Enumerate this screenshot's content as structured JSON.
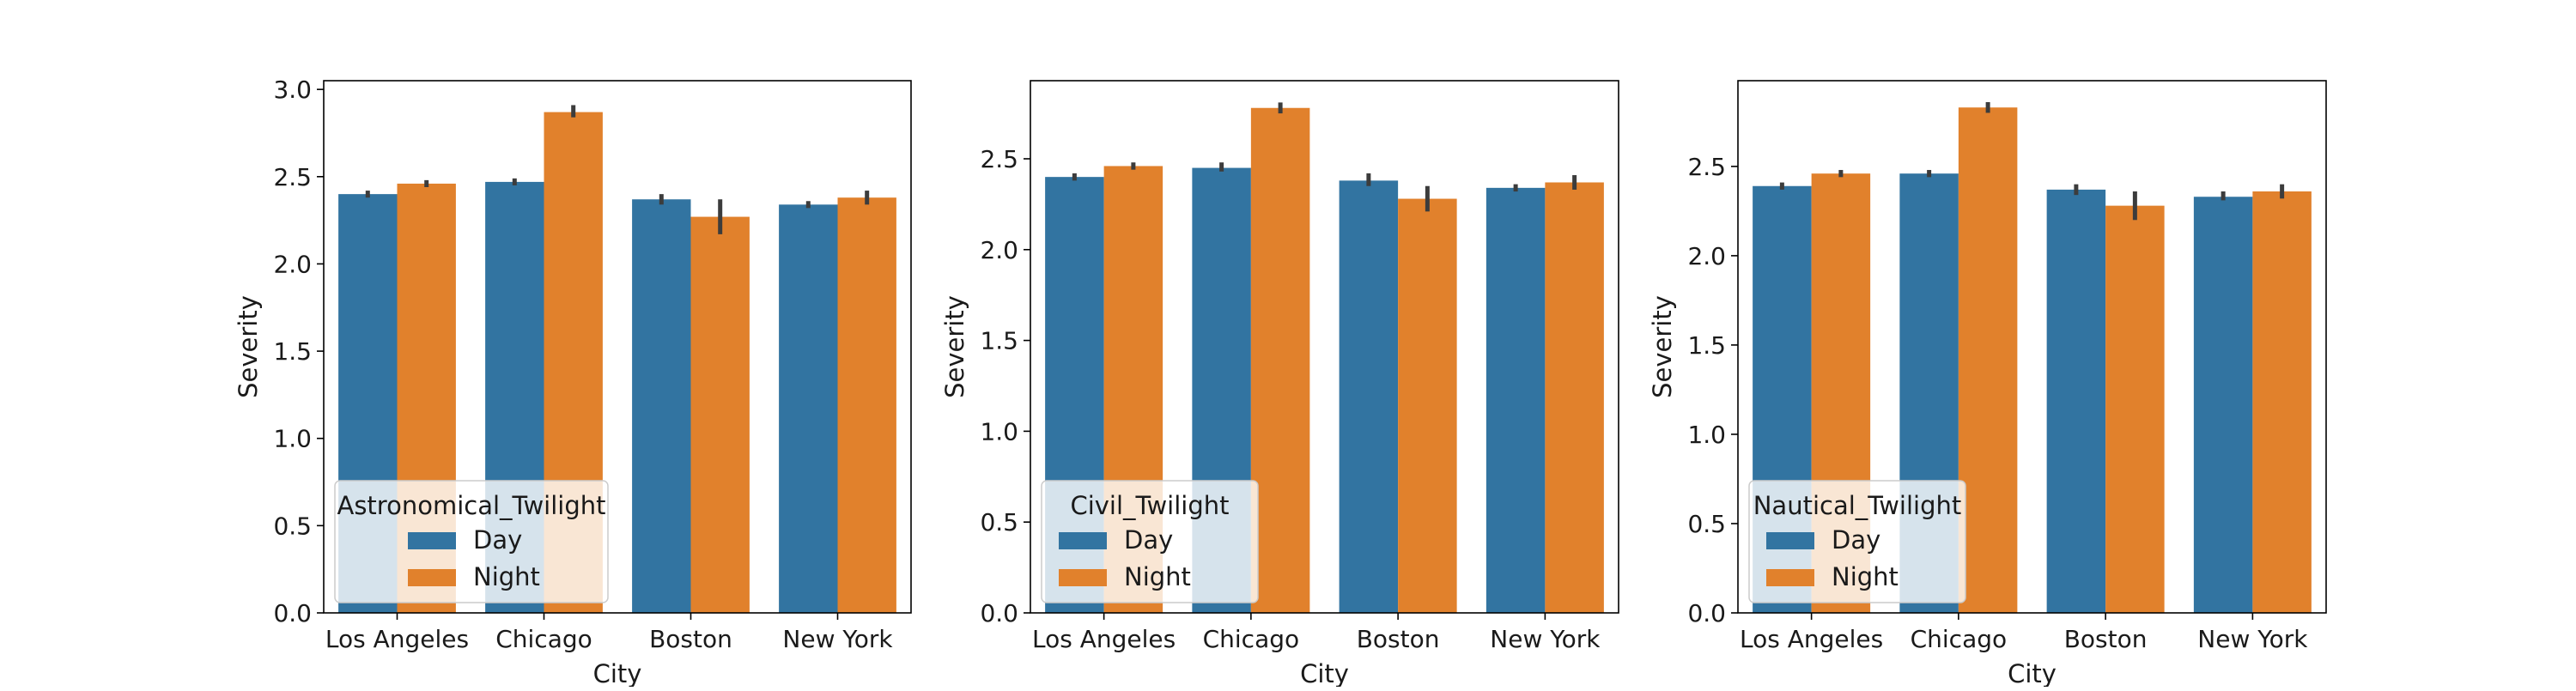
{
  "colors": {
    "day": "#3274a1",
    "night": "#e1812c",
    "errbar": "#3c3c3c",
    "axis": "#000000",
    "legend_bg": "rgba(255,255,255,0.8)",
    "legend_border": "#cccccc"
  },
  "chart_data": [
    {
      "type": "bar",
      "title": "",
      "xlabel": "City",
      "ylabel": "Severity",
      "categories": [
        "Los Angeles",
        "Chicago",
        "Boston",
        "New York"
      ],
      "ylim": [
        0,
        3.05
      ],
      "yticks": [
        "0.0",
        "0.5",
        "1.0",
        "1.5",
        "2.0",
        "2.5",
        "3.0"
      ],
      "legend_title": "Astronomical_Twilight",
      "legend_position": "lower-left",
      "grid": false,
      "series": [
        {
          "name": "Day",
          "values": [
            2.4,
            2.47,
            2.37,
            2.34
          ],
          "ci": [
            [
              2.38,
              2.42
            ],
            [
              2.45,
              2.49
            ],
            [
              2.34,
              2.4
            ],
            [
              2.32,
              2.36
            ]
          ]
        },
        {
          "name": "Night",
          "values": [
            2.46,
            2.87,
            2.27,
            2.38
          ],
          "ci": [
            [
              2.44,
              2.48
            ],
            [
              2.84,
              2.91
            ],
            [
              2.17,
              2.37
            ],
            [
              2.34,
              2.42
            ]
          ]
        }
      ]
    },
    {
      "type": "bar",
      "title": "",
      "xlabel": "City",
      "ylabel": "Severity",
      "categories": [
        "Los Angeles",
        "Chicago",
        "Boston",
        "New York"
      ],
      "ylim": [
        0,
        2.93
      ],
      "yticks": [
        "0.0",
        "0.5",
        "1.0",
        "1.5",
        "2.0",
        "2.5"
      ],
      "legend_title": "Civil_Twilight",
      "legend_position": "lower-left",
      "grid": false,
      "series": [
        {
          "name": "Day",
          "values": [
            2.4,
            2.45,
            2.38,
            2.34
          ],
          "ci": [
            [
              2.38,
              2.42
            ],
            [
              2.43,
              2.48
            ],
            [
              2.35,
              2.42
            ],
            [
              2.32,
              2.36
            ]
          ]
        },
        {
          "name": "Night",
          "values": [
            2.46,
            2.78,
            2.28,
            2.37
          ],
          "ci": [
            [
              2.44,
              2.48
            ],
            [
              2.75,
              2.81
            ],
            [
              2.21,
              2.35
            ],
            [
              2.33,
              2.41
            ]
          ]
        }
      ]
    },
    {
      "type": "bar",
      "title": "",
      "xlabel": "City",
      "ylabel": "Severity",
      "categories": [
        "Los Angeles",
        "Chicago",
        "Boston",
        "New York"
      ],
      "ylim": [
        0,
        2.98
      ],
      "yticks": [
        "0.0",
        "0.5",
        "1.0",
        "1.5",
        "2.0",
        "2.5"
      ],
      "legend_title": "Nautical_Twilight",
      "legend_position": "lower-left",
      "grid": false,
      "series": [
        {
          "name": "Day",
          "values": [
            2.39,
            2.46,
            2.37,
            2.33
          ],
          "ci": [
            [
              2.37,
              2.41
            ],
            [
              2.44,
              2.48
            ],
            [
              2.34,
              2.4
            ],
            [
              2.31,
              2.36
            ]
          ]
        },
        {
          "name": "Night",
          "values": [
            2.46,
            2.83,
            2.28,
            2.36
          ],
          "ci": [
            [
              2.44,
              2.48
            ],
            [
              2.8,
              2.86
            ],
            [
              2.2,
              2.36
            ],
            [
              2.32,
              2.4
            ]
          ]
        }
      ]
    }
  ]
}
